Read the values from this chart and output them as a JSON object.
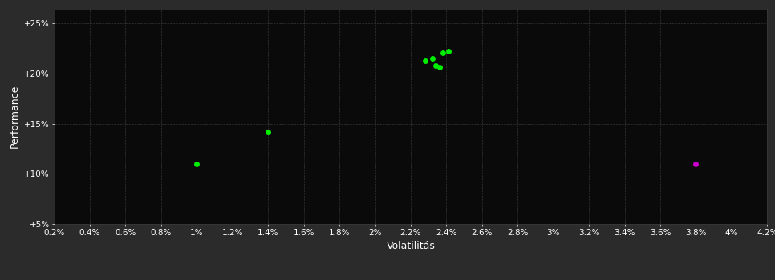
{
  "background_color": "#2b2b2b",
  "plot_bg_color": "#0a0a0a",
  "title": "",
  "xlabel": "Volatilitás",
  "ylabel": "Performance",
  "xlim": [
    0.002,
    0.042
  ],
  "ylim": [
    0.05,
    0.265
  ],
  "xtick_labels": [
    "0.2%",
    "0.4%",
    "0.6%",
    "0.8%",
    "1%",
    "1.2%",
    "1.4%",
    "1.6%",
    "1.8%",
    "2%",
    "2.2%",
    "2.4%",
    "2.6%",
    "2.8%",
    "3%",
    "3.2%",
    "3.4%",
    "3.6%",
    "3.8%",
    "4%",
    "4.2%"
  ],
  "xtick_values": [
    0.002,
    0.004,
    0.006,
    0.008,
    0.01,
    0.012,
    0.014,
    0.016,
    0.018,
    0.02,
    0.022,
    0.024,
    0.026,
    0.028,
    0.03,
    0.032,
    0.034,
    0.036,
    0.038,
    0.04,
    0.042
  ],
  "ytick_labels": [
    "+5%",
    "+10%",
    "+15%",
    "+20%",
    "+25%"
  ],
  "ytick_values": [
    0.05,
    0.1,
    0.15,
    0.2,
    0.25
  ],
  "green_points": [
    [
      0.01,
      0.11
    ],
    [
      0.014,
      0.142
    ],
    [
      0.0228,
      0.213
    ],
    [
      0.0232,
      0.215
    ],
    [
      0.0234,
      0.208
    ],
    [
      0.0236,
      0.206
    ],
    [
      0.0238,
      0.221
    ],
    [
      0.0241,
      0.222
    ]
  ],
  "magenta_point": [
    0.038,
    0.11
  ],
  "green_color": "#00ee00",
  "magenta_color": "#cc00cc",
  "marker_size": 5,
  "text_color": "#ffffff",
  "tick_fontsize": 7.5,
  "label_fontsize": 9,
  "grid_color": "#3a3a3a",
  "grid_alpha": 0.9
}
